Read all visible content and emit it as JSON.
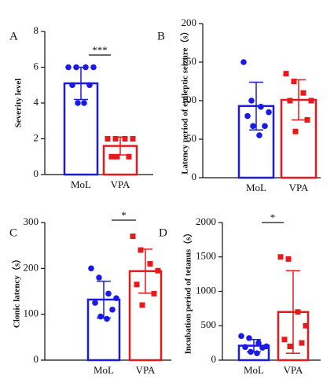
{
  "chart_data": [
    {
      "type": "bar",
      "panel": "A",
      "ylabel": "Severity level",
      "categories": [
        "MoL",
        "VPA"
      ],
      "values": [
        5.1,
        1.6
      ],
      "errors": [
        0.9,
        0.5
      ],
      "colors": [
        "#1a1ae6",
        "#e61a1a"
      ],
      "markers": [
        "circle",
        "square"
      ],
      "points": [
        [
          6,
          6,
          6,
          6,
          5,
          5,
          4,
          4
        ],
        [
          2,
          2,
          2,
          2,
          1,
          1,
          1
        ]
      ],
      "significance": "***",
      "ylim": [
        0,
        8
      ],
      "yticks": [
        0,
        2,
        4,
        6,
        8
      ]
    },
    {
      "type": "bar",
      "panel": "B",
      "ylabel": "Latency period of epileptic seizure（s）",
      "categories": [
        "MoL",
        "VPA"
      ],
      "values": [
        93,
        101
      ],
      "errors": [
        31,
        26
      ],
      "colors": [
        "#1a1ae6",
        "#e61a1a"
      ],
      "markers": [
        "circle",
        "square"
      ],
      "points": [
        [
          150,
          100,
          92,
          85,
          80,
          67,
          67,
          55
        ],
        [
          135,
          125,
          110,
          100,
          100,
          75,
          60
        ]
      ],
      "ylim": [
        0,
        200
      ],
      "yticks": [
        0,
        50,
        100,
        150,
        200
      ]
    },
    {
      "type": "bar",
      "panel": "C",
      "ylabel": "Clonic latency（s）",
      "categories": [
        "MoL",
        "VPA"
      ],
      "values": [
        132,
        194
      ],
      "errors": [
        40,
        48
      ],
      "colors": [
        "#1a1ae6",
        "#e61a1a"
      ],
      "markers": [
        "circle",
        "square"
      ],
      "points": [
        [
          200,
          180,
          145,
          135,
          125,
          110,
          95,
          90
        ],
        [
          270,
          240,
          210,
          195,
          165,
          145,
          120
        ]
      ],
      "significance": "*",
      "ylim": [
        0,
        300
      ],
      "yticks": [
        0,
        100,
        200,
        300
      ]
    },
    {
      "type": "bar",
      "panel": "D",
      "ylabel": "Incubation period of tetanus（s）",
      "categories": [
        "MoL",
        "VPA"
      ],
      "values": [
        210,
        700
      ],
      "errors": [
        90,
        600
      ],
      "colors": [
        "#1a1ae6",
        "#e61a1a"
      ],
      "markers": [
        "circle",
        "square"
      ],
      "points": [
        [
          350,
          320,
          250,
          200,
          190,
          180,
          120,
          100
        ],
        [
          1500,
          1470,
          700,
          500,
          300,
          250,
          200
        ]
      ],
      "significance": "*",
      "ylim": [
        0,
        2000
      ],
      "yticks": [
        0,
        500,
        1000,
        1500,
        2000
      ]
    }
  ]
}
